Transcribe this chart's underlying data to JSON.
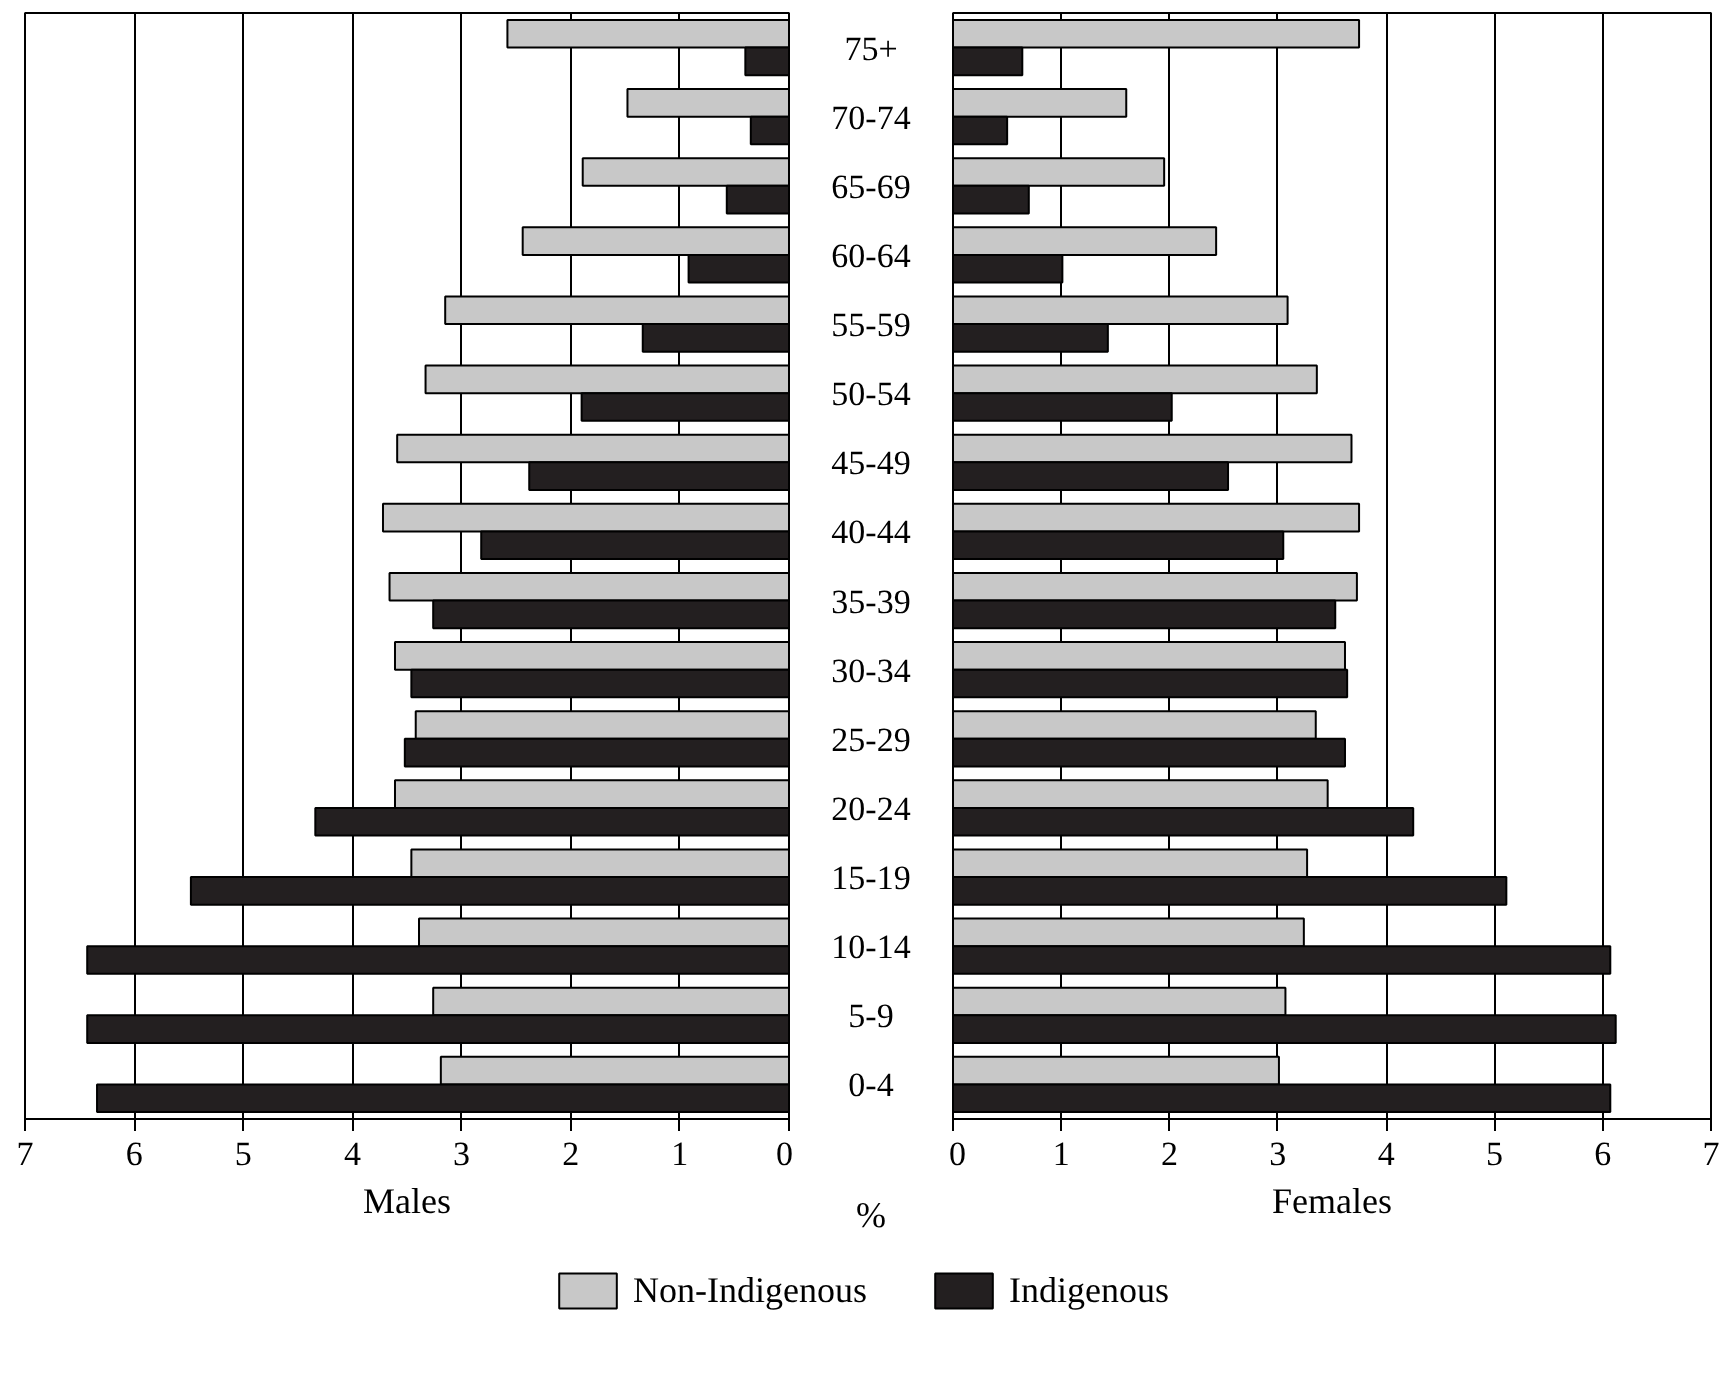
{
  "chart_data": [
    {
      "type": "bar",
      "orientation": "horizontal",
      "xlabel": "Males",
      "categories": [
        "75+",
        "70-74",
        "65-69",
        "60-64",
        "55-59",
        "50-54",
        "45-49",
        "40-44",
        "35-39",
        "30-34",
        "25-29",
        "20-24",
        "15-19",
        "10-14",
        "5-9",
        "0-4"
      ],
      "series": [
        {
          "color": "#c8c8c8",
          "values": [
            2.58,
            1.48,
            1.89,
            2.44,
            3.15,
            3.33,
            3.59,
            3.72,
            3.66,
            3.61,
            3.42,
            3.61,
            3.46,
            3.39,
            3.26,
            3.19
          ]
        },
        {
          "color": "#231f20",
          "values": [
            0.4,
            0.35,
            0.57,
            0.92,
            1.34,
            1.9,
            2.38,
            2.82,
            3.26,
            3.46,
            3.52,
            4.34,
            5.48,
            6.43,
            6.43,
            6.34
          ]
        }
      ],
      "xlim": [
        7,
        0
      ],
      "xticks": [
        0,
        1,
        2,
        3,
        4,
        5,
        6,
        7
      ],
      "grid": "x",
      "annotations": [
        "%"
      ]
    },
    {
      "type": "bar",
      "orientation": "horizontal",
      "xlabel": "Females",
      "categories": [
        null,
        null,
        null,
        null,
        null,
        null,
        null,
        null,
        null,
        null,
        null,
        null,
        null,
        null,
        null,
        null
      ],
      "series": [
        {
          "name": "Non-Indigenous",
          "color": "#c8c8c8",
          "values": [
            3.75,
            1.6,
            1.95,
            2.43,
            3.09,
            3.36,
            3.68,
            3.75,
            3.73,
            3.62,
            3.35,
            3.46,
            3.27,
            3.24,
            3.07,
            3.01
          ]
        },
        {
          "name": "Indigenous",
          "color": "#231f20",
          "values": [
            0.64,
            0.5,
            0.7,
            1.01,
            1.43,
            2.02,
            2.54,
            3.05,
            3.53,
            3.64,
            3.62,
            4.25,
            5.11,
            6.07,
            6.12,
            6.07
          ]
        }
      ],
      "xlim": [
        0,
        7
      ],
      "xticks": [
        0,
        1,
        2,
        3,
        4,
        5,
        6,
        7
      ],
      "grid": "x",
      "legend": "bottom",
      "tick_labels": "x"
    }
  ]
}
